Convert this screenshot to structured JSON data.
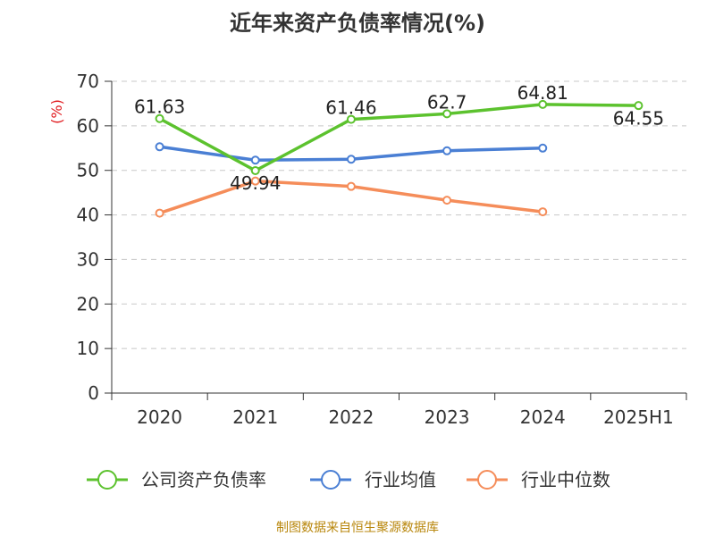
{
  "chart_data": {
    "type": "line",
    "title": "近年来资产负债率情况(%)",
    "ylabel": "(%)",
    "xlabel": "",
    "ylim": [
      0,
      70
    ],
    "yticks": [
      0,
      10,
      20,
      30,
      40,
      50,
      60,
      70
    ],
    "categories": [
      "2020",
      "2021",
      "2022",
      "2023",
      "2024",
      "2025H1"
    ],
    "grid": true,
    "legend_position": "bottom",
    "series": [
      {
        "name": "公司资产负债率",
        "color": "#5cc22e",
        "values": [
          61.63,
          49.94,
          61.46,
          62.7,
          64.81,
          64.55
        ],
        "labels": [
          "61.63",
          "49.94",
          "61.46",
          "62.7",
          "64.81",
          "64.55"
        ]
      },
      {
        "name": "行业均值",
        "color": "#4a7fd4",
        "values": [
          55.3,
          52.3,
          52.5,
          54.4,
          55.0,
          null
        ]
      },
      {
        "name": "行业中位数",
        "color": "#f58d5a",
        "values": [
          40.4,
          47.6,
          46.4,
          43.3,
          40.7,
          null
        ]
      }
    ],
    "source": "制图数据来自恒生聚源数据库"
  }
}
